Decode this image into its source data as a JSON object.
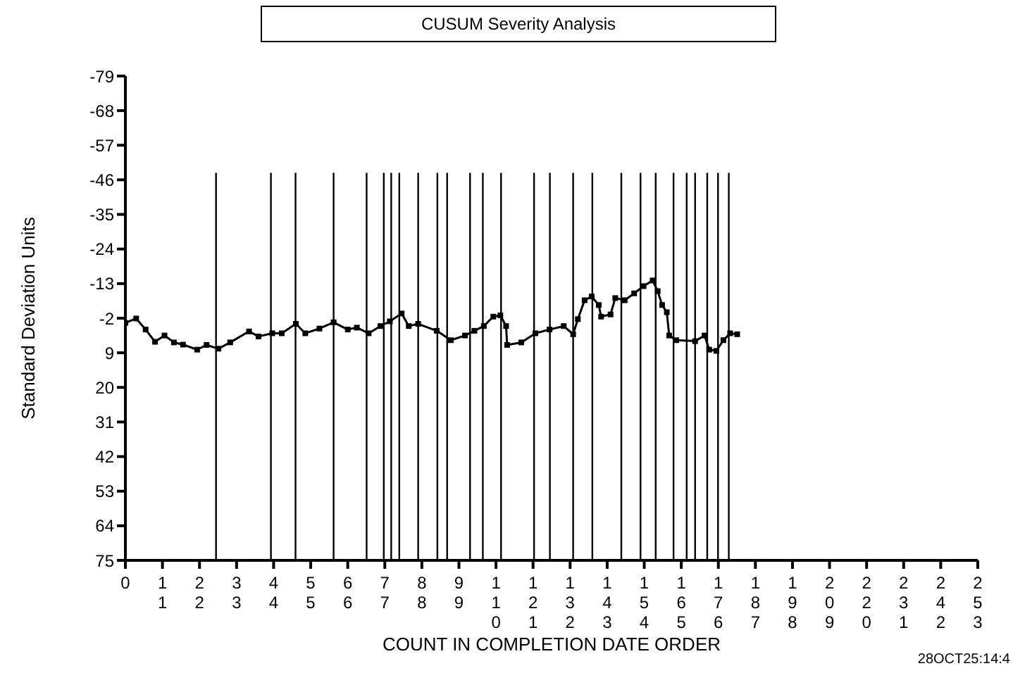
{
  "chart_data": {
    "type": "line",
    "title": "CUSUM Severity Analysis",
    "xlabel": "COUNT IN COMPLETION DATE ORDER",
    "ylabel": "Standard Deviation Units",
    "annotations": [
      "28OCT25:14:4"
    ],
    "xlim": [
      0,
      253
    ],
    "xticks": [
      0,
      11,
      22,
      33,
      44,
      55,
      66,
      77,
      88,
      99,
      110,
      121,
      132,
      143,
      154,
      165,
      176,
      187,
      198,
      209,
      220,
      231,
      242,
      253
    ],
    "ylim": [
      75,
      -79
    ],
    "yticks": [
      -79,
      -68,
      -57,
      -46,
      -35,
      -24,
      -13,
      -2,
      9,
      20,
      31,
      42,
      53,
      64,
      75
    ],
    "marker": "square",
    "line_style": "solid",
    "series": [
      {
        "color": "#000000",
        "x": [
          0,
          3.2,
          6.0,
          8.8,
          11.6,
          14.4,
          17.1,
          21.3,
          24.1,
          27.6,
          31.1,
          36.7,
          39.5,
          43.6,
          46.4,
          50.6,
          53.4,
          57.6,
          61.8,
          66.0,
          68.7,
          72.2,
          75.7,
          78.5,
          82.0,
          84.1,
          86.9,
          92.4,
          96.6,
          100.8,
          103.6,
          106.4,
          109.2,
          111.3,
          113.0,
          113.3,
          117.5,
          121.7,
          125.9,
          130.1,
          132.9,
          134.3,
          136.3,
          138.4,
          140.5,
          141.2,
          144.0,
          145.4,
          148.2,
          151.0,
          153.8,
          156.5,
          158.0,
          159.3,
          160.7,
          161.4,
          163.5,
          169.1,
          171.9,
          173.3,
          175.4,
          177.5,
          179.5,
          181.6
        ],
        "values": [
          -0.5,
          -1.9,
          1.6,
          5.5,
          3.5,
          5.7,
          6.4,
          8.0,
          6.5,
          7.7,
          5.7,
          2.2,
          3.8,
          2.8,
          2.8,
          -0.2,
          2.8,
          1.3,
          -0.7,
          1.6,
          1.0,
          2.8,
          0.5,
          -1.0,
          -3.5,
          0.5,
          -0.2,
          2.0,
          5.0,
          3.5,
          2.0,
          0.5,
          -2.5,
          -2.9,
          0.5,
          6.5,
          5.7,
          2.8,
          1.6,
          0.5,
          3.1,
          -1.7,
          -7.7,
          -8.9,
          -6.2,
          -2.5,
          -3.2,
          -8.4,
          -7.7,
          -9.9,
          -12.2,
          -14.0,
          -10.6,
          -6.2,
          -3.9,
          3.5,
          5.0,
          5.3,
          3.5,
          8.0,
          8.4,
          5.0,
          2.8,
          3.1
        ]
      }
    ],
    "ref_lines": [
      {
        "axis": "x",
        "value": 26.9,
        "color": "#000000"
      },
      {
        "axis": "x",
        "value": 43.2,
        "color": "#000000"
      },
      {
        "axis": "x",
        "value": 50.5,
        "color": "#000000"
      },
      {
        "axis": "x",
        "value": 61.8,
        "color": "#000000"
      },
      {
        "axis": "x",
        "value": 71.6,
        "color": "#000000"
      },
      {
        "axis": "x",
        "value": 76.7,
        "color": "#000000"
      },
      {
        "axis": "x",
        "value": 78.9,
        "color": "#000000"
      },
      {
        "axis": "x",
        "value": 81.3,
        "color": "#000000"
      },
      {
        "axis": "x",
        "value": 86.9,
        "color": "#000000"
      },
      {
        "axis": "x",
        "value": 92.6,
        "color": "#000000"
      },
      {
        "axis": "x",
        "value": 95.5,
        "color": "#000000"
      },
      {
        "axis": "x",
        "value": 102.3,
        "color": "#000000"
      },
      {
        "axis": "x",
        "value": 106.1,
        "color": "#000000"
      },
      {
        "axis": "x",
        "value": 111.5,
        "color": "#000000"
      },
      {
        "axis": "x",
        "value": 121.3,
        "color": "#000000"
      },
      {
        "axis": "x",
        "value": 126.0,
        "color": "#000000"
      },
      {
        "axis": "x",
        "value": 132.9,
        "color": "#000000"
      },
      {
        "axis": "x",
        "value": 138.6,
        "color": "#000000"
      },
      {
        "axis": "x",
        "value": 147.2,
        "color": "#000000"
      },
      {
        "axis": "x",
        "value": 152.9,
        "color": "#000000"
      },
      {
        "axis": "x",
        "value": 157.4,
        "color": "#000000"
      },
      {
        "axis": "x",
        "value": 162.7,
        "color": "#000000"
      },
      {
        "axis": "x",
        "value": 166.6,
        "color": "#000000"
      },
      {
        "axis": "x",
        "value": 169.1,
        "color": "#000000"
      },
      {
        "axis": "x",
        "value": 172.7,
        "color": "#000000"
      },
      {
        "axis": "x",
        "value": 175.9,
        "color": "#000000"
      },
      {
        "axis": "x",
        "value": 179.1,
        "color": "#000000"
      }
    ]
  }
}
